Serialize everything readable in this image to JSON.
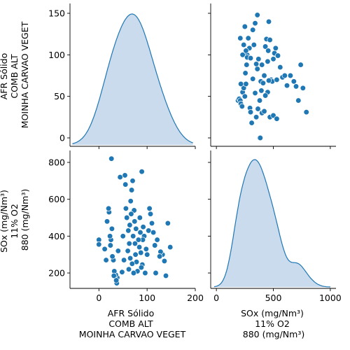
{
  "chart_data": {
    "type": "scatter",
    "layout": "pairplot",
    "variables": [
      {
        "key": "afr",
        "label_lines": [
          "AFR Sólido",
          "COMB ALT",
          "MOINHA CARVAO VEGET"
        ],
        "ticks": [
          0,
          50,
          100,
          150
        ],
        "bottom_ticks": [
          0,
          100,
          200
        ],
        "range": [
          -60,
          200
        ]
      },
      {
        "key": "sox",
        "label_lines": [
          "SOx (mg/Nm³)",
          "11% O2",
          "880 (mg/Nm³)"
        ],
        "ticks": [
          200,
          400,
          600,
          800
        ],
        "bottom_ticks": [
          0,
          500,
          1000
        ],
        "range": [
          -50,
          1050
        ]
      }
    ],
    "diagonal": {
      "type": "kde",
      "fill_color": "#c6d9ec",
      "line_color": "#1f77b4"
    },
    "point_color": "#1f77b4",
    "points": [
      {
        "afr": 148,
        "sox": 340
      },
      {
        "afr": 143,
        "sox": 470
      },
      {
        "afr": 139,
        "sox": 185
      },
      {
        "afr": 136,
        "sox": 265
      },
      {
        "afr": 132,
        "sox": 300
      },
      {
        "afr": 128,
        "sox": 315
      },
      {
        "afr": 126,
        "sox": 290
      },
      {
        "afr": 121,
        "sox": 380
      },
      {
        "afr": 118,
        "sox": 200
      },
      {
        "afr": 116,
        "sox": 350
      },
      {
        "afr": 113,
        "sox": 420
      },
      {
        "afr": 110,
        "sox": 470
      },
      {
        "afr": 107,
        "sox": 520
      },
      {
        "afr": 105,
        "sox": 550
      },
      {
        "afr": 103,
        "sox": 430
      },
      {
        "afr": 100,
        "sox": 300
      },
      {
        "afr": 98,
        "sox": 330
      },
      {
        "afr": 96,
        "sox": 200
      },
      {
        "afr": 94,
        "sox": 400
      },
      {
        "afr": 92,
        "sox": 450
      },
      {
        "afr": 91,
        "sox": 380
      },
      {
        "afr": 90,
        "sox": 245
      },
      {
        "afr": 89,
        "sox": 750
      },
      {
        "afr": 88,
        "sox": 230
      },
      {
        "afr": 87,
        "sox": 310
      },
      {
        "afr": 86,
        "sox": 420
      },
      {
        "afr": 85,
        "sox": 500
      },
      {
        "afr": 84,
        "sox": 340
      },
      {
        "afr": 82,
        "sox": 380
      },
      {
        "afr": 80,
        "sox": 210
      },
      {
        "afr": 78,
        "sox": 260
      },
      {
        "afr": 77,
        "sox": 440
      },
      {
        "afr": 76,
        "sox": 300
      },
      {
        "afr": 75,
        "sox": 360
      },
      {
        "afr": 74,
        "sox": 480
      },
      {
        "afr": 73,
        "sox": 540
      },
      {
        "afr": 72,
        "sox": 200
      },
      {
        "afr": 71,
        "sox": 400
      },
      {
        "afr": 70,
        "sox": 700
      },
      {
        "afr": 69,
        "sox": 250
      },
      {
        "afr": 68,
        "sox": 650
      },
      {
        "afr": 67,
        "sox": 520
      },
      {
        "afr": 66,
        "sox": 590
      },
      {
        "afr": 65,
        "sox": 280
      },
      {
        "afr": 64,
        "sox": 460
      },
      {
        "afr": 63,
        "sox": 360
      },
      {
        "afr": 62,
        "sox": 220
      },
      {
        "afr": 61,
        "sox": 430
      },
      {
        "afr": 60,
        "sox": 320
      },
      {
        "afr": 58,
        "sox": 500
      },
      {
        "afr": 56,
        "sox": 550
      },
      {
        "afr": 55,
        "sox": 680
      },
      {
        "afr": 54,
        "sox": 730
      },
      {
        "afr": 52,
        "sox": 270
      },
      {
        "afr": 50,
        "sox": 400
      },
      {
        "afr": 48,
        "sox": 205
      },
      {
        "afr": 44,
        "sox": 720
      },
      {
        "afr": 40,
        "sox": 320
      },
      {
        "afr": 38,
        "sox": 175
      },
      {
        "afr": 37,
        "sox": 145
      },
      {
        "afr": 36,
        "sox": 160
      },
      {
        "afr": 35,
        "sox": 190
      },
      {
        "afr": 32,
        "sox": 210
      },
      {
        "afr": 31,
        "sox": 185
      },
      {
        "afr": 30,
        "sox": 270
      },
      {
        "afr": 28,
        "sox": 290
      },
      {
        "afr": 27,
        "sox": 440
      },
      {
        "afr": 26,
        "sox": 820
      },
      {
        "afr": 25,
        "sox": 380
      },
      {
        "afr": 24,
        "sox": 350
      },
      {
        "afr": 23,
        "sox": 400
      },
      {
        "afr": 21,
        "sox": 530
      },
      {
        "afr": 20,
        "sox": 550
      },
      {
        "afr": 17,
        "sox": 480
      },
      {
        "afr": 15,
        "sox": 270
      },
      {
        "afr": 12,
        "sox": 330
      },
      {
        "afr": 0,
        "sox": 380
      },
      {
        "afr": 0,
        "sox": 355
      }
    ]
  }
}
